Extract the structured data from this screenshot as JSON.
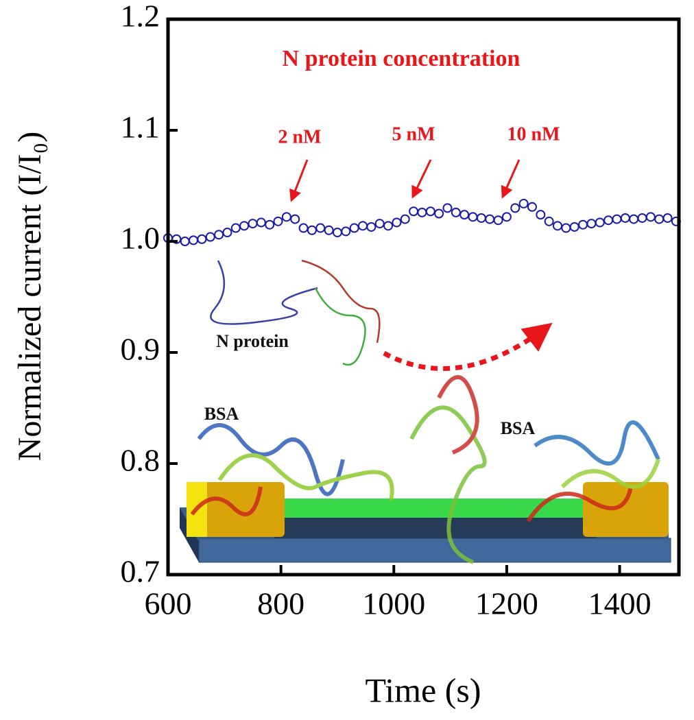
{
  "chart_data": {
    "type": "scatter",
    "title": "N protein concentration",
    "x_label": "Time (s)",
    "y_label": "Normalized current (I/I₀)",
    "annotations": [
      "2 nM",
      "5 nM",
      "10 nM",
      "N protein",
      "BSA",
      "BSA"
    ],
    "xlim": [
      600,
      1505
    ],
    "xticks": [
      600,
      800,
      1000,
      1200,
      1400
    ],
    "ylim": [
      0.7,
      1.2
    ],
    "yticks": [
      0.7,
      0.8,
      0.9,
      {
        "value": 1,
        "label": "1.0"
      },
      1.1,
      1.2
    ],
    "series": [
      {
        "color": "#1a1aa8",
        "x": [
          600,
          615,
          630,
          645,
          660,
          675,
          690,
          705,
          720,
          735,
          750,
          765,
          780,
          795,
          810,
          825,
          840,
          855,
          870,
          885,
          900,
          915,
          930,
          945,
          960,
          975,
          990,
          1005,
          1020,
          1035,
          1050,
          1065,
          1080,
          1095,
          1110,
          1125,
          1140,
          1155,
          1170,
          1185,
          1200,
          1215,
          1230,
          1245,
          1260,
          1275,
          1290,
          1305,
          1320,
          1335,
          1350,
          1365,
          1380,
          1395,
          1410,
          1425,
          1440,
          1455,
          1470,
          1485,
          1500
        ],
        "values": [
          1.003,
          1.002,
          1.0,
          1.001,
          1.002,
          1.004,
          1.006,
          1.008,
          1.012,
          1.014,
          1.016,
          1.017,
          1.015,
          1.018,
          1.022,
          1.02,
          1.012,
          1.01,
          1.012,
          1.01,
          1.008,
          1.009,
          1.012,
          1.014,
          1.013,
          1.016,
          1.014,
          1.017,
          1.02,
          1.027,
          1.026,
          1.027,
          1.025,
          1.03,
          1.026,
          1.024,
          1.022,
          1.021,
          1.02,
          1.019,
          1.022,
          1.03,
          1.034,
          1.031,
          1.024,
          1.018,
          1.014,
          1.012,
          1.013,
          1.015,
          1.016,
          1.017,
          1.019,
          1.02,
          1.021,
          1.02,
          1.021,
          1.022,
          1.02,
          1.021,
          1.018
        ]
      }
    ]
  }
}
